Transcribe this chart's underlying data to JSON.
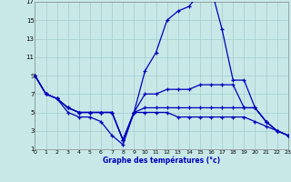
{
  "xlabel": "Graphe des températures (°c)",
  "bg_color": "#c8e8e8",
  "grid_color": "#a8d0d0",
  "line_color": "#0000bb",
  "xlim": [
    0,
    23
  ],
  "ylim": [
    1,
    17
  ],
  "xticks": [
    0,
    1,
    2,
    3,
    4,
    5,
    6,
    7,
    8,
    9,
    10,
    11,
    12,
    13,
    14,
    15,
    16,
    17,
    18,
    19,
    20,
    21,
    22,
    23
  ],
  "yticks": [
    1,
    3,
    5,
    7,
    9,
    11,
    13,
    15,
    17
  ],
  "line1_x": [
    0,
    1,
    2,
    3,
    4,
    5,
    6,
    7,
    8,
    9,
    10,
    11,
    12,
    13,
    14,
    15,
    16,
    17,
    18,
    19,
    20,
    21,
    22,
    23
  ],
  "line1_y": [
    9,
    7,
    6.5,
    5.5,
    5,
    5,
    5,
    5,
    2,
    5,
    9.5,
    11.5,
    15,
    16,
    16.5,
    18,
    18.5,
    14,
    8.5,
    8.5,
    5.5,
    4,
    3,
    2.5
  ],
  "line2_x": [
    0,
    1,
    2,
    3,
    4,
    5,
    6,
    7,
    8,
    9,
    10,
    11,
    12,
    13,
    14,
    15,
    16,
    17,
    18,
    19,
    20,
    21,
    22,
    23
  ],
  "line2_y": [
    9,
    7,
    6.5,
    5.5,
    5,
    5,
    5,
    5,
    2,
    5,
    7,
    7,
    7.5,
    7.5,
    7.5,
    8,
    8,
    8,
    8,
    5.5,
    5.5,
    4,
    3,
    2.5
  ],
  "line3_x": [
    0,
    1,
    2,
    3,
    4,
    5,
    6,
    7,
    8,
    9,
    10,
    11,
    12,
    13,
    14,
    15,
    16,
    17,
    18,
    19,
    20,
    21,
    22,
    23
  ],
  "line3_y": [
    9,
    7,
    6.5,
    5.5,
    5,
    5,
    5,
    5,
    2,
    5,
    5.5,
    5.5,
    5.5,
    5.5,
    5.5,
    5.5,
    5.5,
    5.5,
    5.5,
    5.5,
    5.5,
    4,
    3,
    2.5
  ],
  "line4_x": [
    0,
    1,
    2,
    3,
    4,
    5,
    6,
    7,
    8,
    9,
    10,
    11,
    12,
    13,
    14,
    15,
    16,
    17,
    18,
    19,
    20,
    21,
    22,
    23
  ],
  "line4_y": [
    9,
    7,
    6.5,
    5,
    4.5,
    4.5,
    4,
    2.5,
    1.5,
    5,
    5,
    5,
    5,
    4.5,
    4.5,
    4.5,
    4.5,
    4.5,
    4.5,
    4.5,
    4,
    3.5,
    3,
    2.5
  ]
}
